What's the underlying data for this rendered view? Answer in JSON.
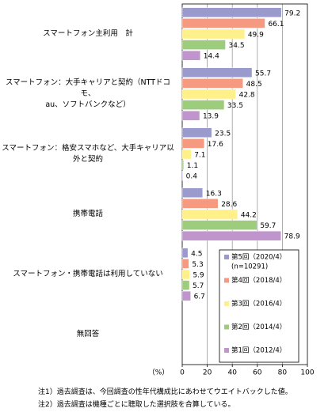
{
  "chart_data": {
    "type": "bar",
    "orientation": "horizontal",
    "categories": [
      "スマートフォン主利用　計",
      "スマートフォン：大手キャリアと契約（NTTドコモ、\nau、ソフトバンクなど）",
      "スマートフォン：格安スマホなど、大手キャリア以\n外と契約",
      "携帯電話",
      "スマートフォン・携帯電話は利用していない",
      "無回答"
    ],
    "series": [
      {
        "name": "第5回（2020/4）",
        "color": "#9a9acc",
        "values": [
          79.2,
          55.7,
          23.5,
          16.3,
          4.5,
          null
        ]
      },
      {
        "name": "第4回（2018/4）",
        "color": "#f59a80",
        "values": [
          66.1,
          48.5,
          17.6,
          28.6,
          5.3,
          null
        ]
      },
      {
        "name": "第3回（2016/4）",
        "color": "#fff08a",
        "values": [
          49.9,
          42.8,
          7.1,
          44.2,
          5.9,
          null
        ]
      },
      {
        "name": "第2回（2014/4）",
        "color": "#9ccc7c",
        "values": [
          34.5,
          33.5,
          1.1,
          59.7,
          5.7,
          null
        ]
      },
      {
        "name": "第1回（2012/4）",
        "color": "#c094cc",
        "values": [
          14.4,
          13.9,
          0.4,
          78.9,
          6.7,
          null
        ]
      }
    ],
    "legend_note": "(n=10291)",
    "xlabel": "（%）",
    "xlim": [
      0,
      100
    ],
    "xticks": [
      0,
      20,
      40,
      60,
      80,
      100
    ],
    "grid": true,
    "notes": [
      "注1）過去調査は、今回調査の性年代構成比にあわせてウエイトバックした値。",
      "注2）過去調査は機種ごとに聴取した選択肢を合算している。"
    ]
  }
}
